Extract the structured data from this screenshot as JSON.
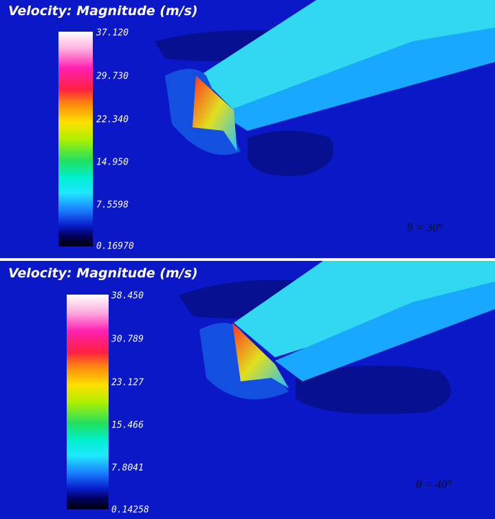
{
  "panels": [
    {
      "title": "Velocity: Magnitude (m/s)",
      "colorbar_labels": [
        "37.120",
        "29.730",
        "22.340",
        "14.950",
        "7.5598",
        "0.16970"
      ],
      "angle_label": "θ = 30°"
    },
    {
      "title": "Velocity: Magnitude (m/s)",
      "colorbar_labels": [
        "38.450",
        "30.789",
        "23.127",
        "15.466",
        "7.8041",
        "0.14258"
      ],
      "angle_label": "θ = 40°"
    }
  ]
}
